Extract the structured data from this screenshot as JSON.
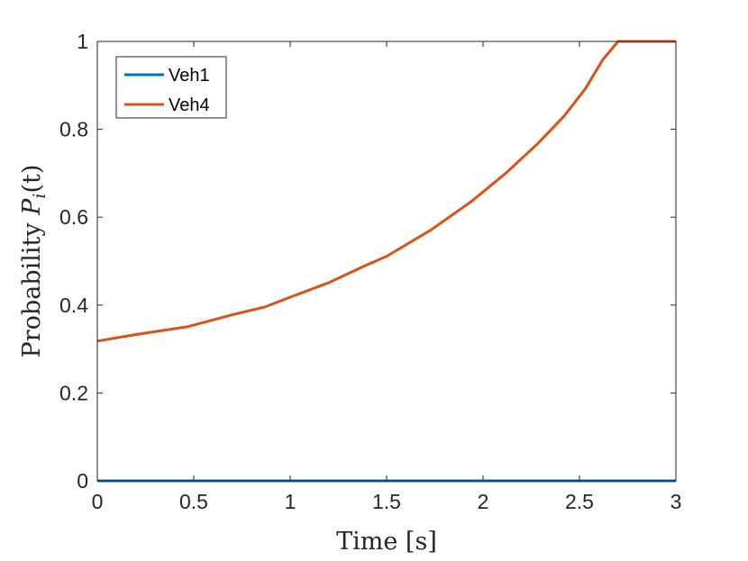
{
  "chart_data": {
    "type": "line",
    "xlabel": "Time [s]",
    "ylabel_text": "Probability ",
    "ylabel_math": "P",
    "ylabel_sub": "i",
    "ylabel_paren": "(t)",
    "xlim": [
      0,
      3
    ],
    "ylim": [
      0,
      1
    ],
    "xticks": [
      0,
      0.5,
      1,
      1.5,
      2,
      2.5,
      3
    ],
    "xtick_labels": [
      "0",
      "0.5",
      "1",
      "1.5",
      "2",
      "2.5",
      "3"
    ],
    "yticks": [
      0,
      0.2,
      0.4,
      0.6,
      0.8,
      1
    ],
    "ytick_labels": [
      "0",
      "0.2",
      "0.4",
      "0.6",
      "0.8",
      "1"
    ],
    "grid": false,
    "legend_placement": "top-left",
    "series": [
      {
        "name": "Veh1",
        "color": "#0072BD",
        "x": [
          0,
          3
        ],
        "y": [
          0,
          0
        ]
      },
      {
        "name": "Veh4",
        "color": "#D95319",
        "x": [
          0,
          0.2,
          0.47,
          0.7,
          0.87,
          1.0,
          1.2,
          1.4,
          1.5,
          1.73,
          1.94,
          2.12,
          2.28,
          2.42,
          2.53,
          2.62,
          2.7,
          3.0
        ],
        "y": [
          0.318,
          0.333,
          0.351,
          0.378,
          0.396,
          0.418,
          0.451,
          0.492,
          0.511,
          0.571,
          0.636,
          0.701,
          0.766,
          0.83,
          0.892,
          0.958,
          1.0,
          1.0
        ]
      }
    ]
  }
}
